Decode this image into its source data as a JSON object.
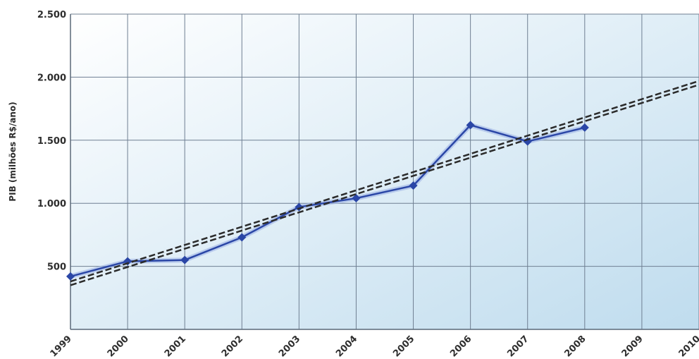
{
  "chart_data": {
    "type": "line",
    "title": "",
    "xlabel": "",
    "ylabel": "PIB (milhões R$/ano)",
    "x": [
      "1999",
      "2000",
      "2001",
      "2002",
      "2003",
      "2004",
      "2005",
      "2006",
      "2007",
      "2008",
      "2009",
      "2010"
    ],
    "ylim": [
      0,
      2500
    ],
    "yticks": [
      0,
      500,
      1000,
      1500,
      2000,
      2500
    ],
    "ytick_labels": [
      "",
      "500",
      "1.000",
      "1.500",
      "2.000",
      "2.500"
    ],
    "grid": true,
    "series": [
      {
        "type": "line",
        "markers": "diamond",
        "color": "#2a46a6",
        "x": [
          "1999",
          "2000",
          "2001",
          "2002",
          "2003",
          "2004",
          "2005",
          "2006",
          "2007",
          "2008"
        ],
        "values": [
          420,
          540,
          550,
          730,
          970,
          1040,
          1140,
          1620,
          1490,
          1600
        ]
      },
      {
        "type": "trendline",
        "style": "dashed",
        "color": "#2b2b2b",
        "x": [
          "1999",
          "2010"
        ],
        "values": [
          380,
          1970
        ]
      },
      {
        "type": "trendline",
        "style": "dashed",
        "color": "#2b2b2b",
        "x": [
          "1999",
          "2010"
        ],
        "values": [
          350,
          1940
        ]
      }
    ],
    "background": {
      "from": "#ffffff",
      "to": "#bfdcee"
    }
  }
}
